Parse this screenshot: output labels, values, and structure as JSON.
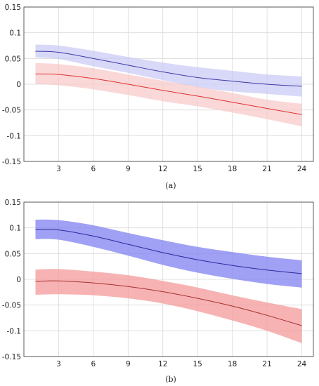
{
  "chart_data": [
    {
      "type": "line",
      "caption": "(a)",
      "x_ticks": [
        3,
        6,
        9,
        12,
        15,
        18,
        21,
        24
      ],
      "y_ticks": [
        "0.15",
        "0.1",
        "0.05",
        "0",
        "-0.05",
        "-0.1",
        "-0.15"
      ],
      "xlim": [
        0,
        25
      ],
      "ylim": [
        -0.15,
        0.15
      ],
      "grid": true,
      "series": [
        {
          "color": "#3a3aa8",
          "band_color": "#c8c8f5",
          "band_opacity": 0.7,
          "x": [
            1,
            3,
            6,
            9,
            12,
            15,
            18,
            21,
            24
          ],
          "values": [
            0.064,
            0.062,
            0.05,
            0.037,
            0.024,
            0.013,
            0.006,
            0.0,
            -0.004
          ],
          "upper": [
            0.077,
            0.075,
            0.065,
            0.053,
            0.042,
            0.033,
            0.026,
            0.019,
            0.015
          ],
          "lower": [
            0.052,
            0.049,
            0.035,
            0.022,
            0.008,
            -0.006,
            -0.014,
            -0.019,
            -0.024
          ]
        },
        {
          "color": "#e03030",
          "band_color": "#f8c8c8",
          "band_opacity": 0.7,
          "x": [
            1,
            3,
            6,
            9,
            12,
            15,
            18,
            21,
            24
          ],
          "values": [
            0.02,
            0.019,
            0.011,
            0.0,
            -0.012,
            -0.023,
            -0.035,
            -0.047,
            -0.059
          ],
          "upper": [
            0.041,
            0.039,
            0.031,
            0.019,
            0.007,
            -0.005,
            -0.017,
            -0.03,
            -0.038
          ],
          "lower": [
            0.0,
            -0.002,
            -0.01,
            -0.021,
            -0.033,
            -0.043,
            -0.055,
            -0.068,
            -0.082
          ]
        }
      ]
    },
    {
      "type": "line",
      "caption": "(b)",
      "x_ticks": [
        3,
        6,
        9,
        12,
        15,
        18,
        21,
        24
      ],
      "y_ticks": [
        "0.15",
        "0.1",
        "0.05",
        "0",
        "-0.05",
        "-0.1",
        "-0.15"
      ],
      "xlim": [
        0,
        25
      ],
      "ylim": [
        -0.15,
        0.15
      ],
      "grid": true,
      "series": [
        {
          "color": "#2a2aa0",
          "band_color": "#8080f0",
          "band_opacity": 0.75,
          "x": [
            1,
            3,
            6,
            9,
            12,
            15,
            18,
            21,
            24
          ],
          "values": [
            0.097,
            0.096,
            0.084,
            0.068,
            0.052,
            0.038,
            0.027,
            0.018,
            0.011
          ],
          "upper": [
            0.116,
            0.115,
            0.105,
            0.09,
            0.076,
            0.063,
            0.053,
            0.044,
            0.037
          ],
          "lower": [
            0.078,
            0.077,
            0.063,
            0.046,
            0.028,
            0.013,
            0.001,
            -0.009,
            -0.016
          ]
        },
        {
          "color": "#a83030",
          "band_color": "#f49a9a",
          "band_opacity": 0.75,
          "x": [
            1,
            3,
            6,
            9,
            12,
            15,
            18,
            21,
            24
          ],
          "values": [
            -0.004,
            -0.003,
            -0.007,
            -0.014,
            -0.024,
            -0.037,
            -0.052,
            -0.07,
            -0.09
          ],
          "upper": [
            0.019,
            0.02,
            0.015,
            0.008,
            -0.003,
            -0.016,
            -0.031,
            -0.045,
            -0.058
          ],
          "lower": [
            -0.03,
            -0.029,
            -0.031,
            -0.037,
            -0.047,
            -0.062,
            -0.08,
            -0.1,
            -0.124
          ]
        }
      ]
    }
  ]
}
